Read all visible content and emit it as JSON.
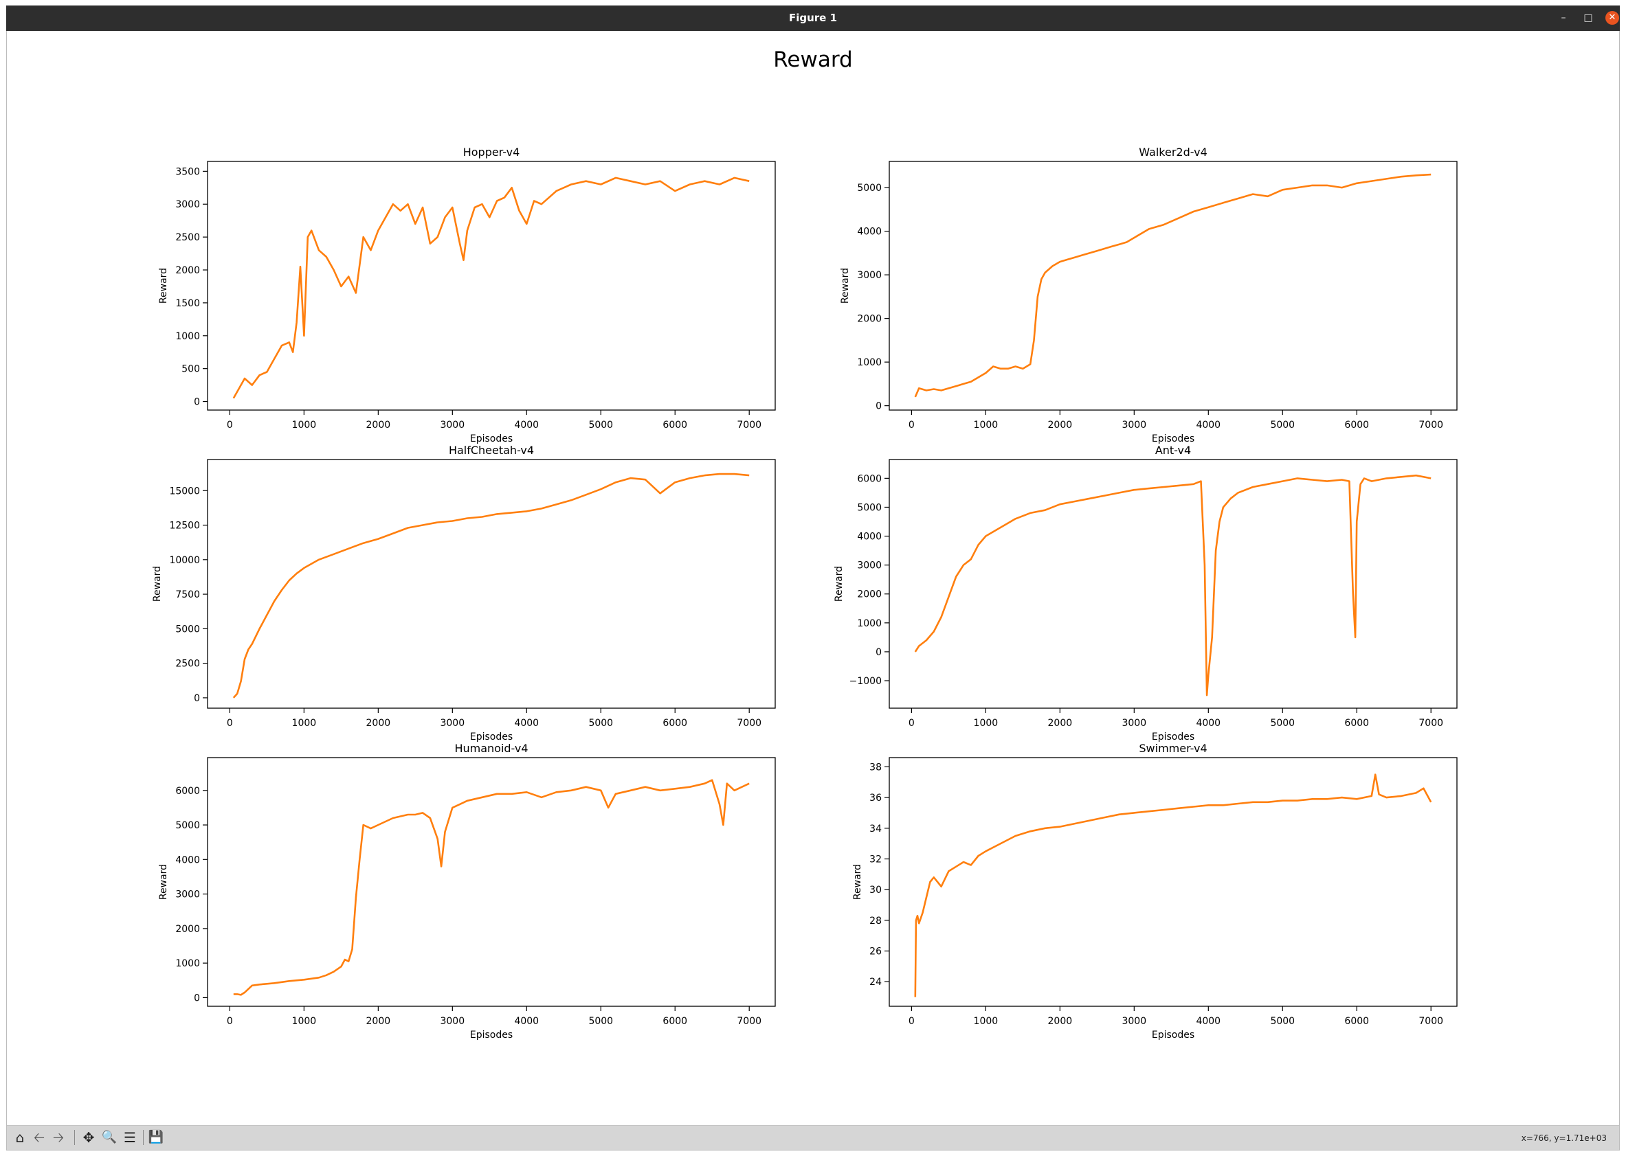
{
  "window": {
    "title": "Figure 1"
  },
  "figure": {
    "suptitle": "Reward"
  },
  "toolbar": {
    "buttons": [
      "home-icon",
      "back-icon",
      "forward-icon",
      "pan-icon",
      "zoom-icon",
      "configure-subplots-icon",
      "save-icon"
    ],
    "status": "x=766, y=1.71e+03"
  },
  "colors": {
    "line": "#ff7f0e",
    "titlebar": "#2e2e2e",
    "toolbar": "#d6d6d6",
    "close": "#e95420"
  },
  "chart_data": [
    {
      "type": "line",
      "title": "Hopper-v4",
      "xlabel": "Episodes",
      "ylabel": "Reward",
      "xlim": [
        -300,
        7350
      ],
      "ylim": [
        -130,
        3650
      ],
      "xticks": [
        0,
        1000,
        2000,
        3000,
        4000,
        5000,
        6000,
        7000
      ],
      "yticks": [
        0,
        500,
        1000,
        1500,
        2000,
        2500,
        3000,
        3500
      ],
      "x": [
        50,
        150,
        200,
        300,
        400,
        500,
        600,
        700,
        800,
        850,
        900,
        950,
        1000,
        1050,
        1100,
        1200,
        1300,
        1400,
        1500,
        1600,
        1700,
        1800,
        1900,
        2000,
        2100,
        2200,
        2300,
        2400,
        2500,
        2600,
        2700,
        2800,
        2900,
        3000,
        3100,
        3150,
        3200,
        3300,
        3400,
        3500,
        3600,
        3700,
        3800,
        3900,
        4000,
        4100,
        4200,
        4300,
        4400,
        4500,
        4600,
        4800,
        5000,
        5200,
        5400,
        5600,
        5800,
        6000,
        6200,
        6400,
        6600,
        6800,
        7000
      ],
      "y": [
        50,
        250,
        350,
        250,
        400,
        450,
        650,
        850,
        900,
        750,
        1200,
        2050,
        1000,
        2500,
        2600,
        2300,
        2200,
        2000,
        1750,
        1900,
        1650,
        2500,
        2300,
        2600,
        2800,
        3000,
        2900,
        3000,
        2700,
        2950,
        2400,
        2500,
        2800,
        2950,
        2400,
        2150,
        2600,
        2950,
        3000,
        2800,
        3050,
        3100,
        3250,
        2900,
        2700,
        3050,
        3000,
        3100,
        3200,
        3250,
        3300,
        3350,
        3300,
        3400,
        3350,
        3300,
        3350,
        3200,
        3300,
        3350,
        3300,
        3400,
        3350
      ]
    },
    {
      "type": "line",
      "title": "Walker2d-v4",
      "xlabel": "Episodes",
      "ylabel": "Reward",
      "xlim": [
        -300,
        7350
      ],
      "ylim": [
        -100,
        5600
      ],
      "xticks": [
        0,
        1000,
        2000,
        3000,
        4000,
        5000,
        6000,
        7000
      ],
      "yticks": [
        0,
        1000,
        2000,
        3000,
        4000,
        5000
      ],
      "x": [
        50,
        100,
        200,
        300,
        400,
        500,
        600,
        700,
        800,
        900,
        1000,
        1100,
        1200,
        1300,
        1400,
        1500,
        1600,
        1650,
        1700,
        1750,
        1800,
        1900,
        2000,
        2100,
        2200,
        2300,
        2400,
        2500,
        2600,
        2700,
        2800,
        2900,
        3000,
        3200,
        3400,
        3600,
        3800,
        4000,
        4200,
        4400,
        4600,
        4800,
        5000,
        5200,
        5400,
        5600,
        5800,
        6000,
        6200,
        6400,
        6600,
        6800,
        7000
      ],
      "y": [
        200,
        400,
        350,
        380,
        350,
        400,
        450,
        500,
        550,
        650,
        750,
        900,
        850,
        850,
        900,
        850,
        950,
        1500,
        2500,
        2900,
        3050,
        3200,
        3300,
        3350,
        3400,
        3450,
        3500,
        3550,
        3600,
        3650,
        3700,
        3750,
        3850,
        4050,
        4150,
        4300,
        4450,
        4550,
        4650,
        4750,
        4850,
        4800,
        4950,
        5000,
        5050,
        5050,
        5000,
        5100,
        5150,
        5200,
        5250,
        5280,
        5300
      ]
    },
    {
      "type": "line",
      "title": "HalfCheetah-v4",
      "xlabel": "Episodes",
      "ylabel": "Reward",
      "xlim": [
        -300,
        7350
      ],
      "ylim": [
        -750,
        17250
      ],
      "xticks": [
        0,
        1000,
        2000,
        3000,
        4000,
        5000,
        6000,
        7000
      ],
      "yticks": [
        0,
        2500,
        5000,
        7500,
        10000,
        12500,
        15000
      ],
      "x": [
        50,
        100,
        150,
        200,
        250,
        300,
        400,
        500,
        600,
        700,
        800,
        900,
        1000,
        1200,
        1400,
        1600,
        1800,
        2000,
        2200,
        2400,
        2600,
        2800,
        3000,
        3200,
        3400,
        3600,
        3800,
        4000,
        4200,
        4400,
        4600,
        4800,
        5000,
        5200,
        5400,
        5600,
        5700,
        5800,
        6000,
        6200,
        6400,
        6600,
        6800,
        7000
      ],
      "y": [
        0,
        300,
        1200,
        2800,
        3500,
        3900,
        5000,
        6000,
        7000,
        7800,
        8500,
        9000,
        9400,
        10000,
        10400,
        10800,
        11200,
        11500,
        11900,
        12300,
        12500,
        12700,
        12800,
        13000,
        13100,
        13300,
        13400,
        13500,
        13700,
        14000,
        14300,
        14700,
        15100,
        15600,
        15900,
        15800,
        15300,
        14800,
        15600,
        15900,
        16100,
        16200,
        16200,
        16100
      ]
    },
    {
      "type": "line",
      "title": "Ant-v4",
      "xlabel": "Episodes",
      "ylabel": "Reward",
      "xlim": [
        -300,
        7350
      ],
      "ylim": [
        -1950,
        6650
      ],
      "xticks": [
        0,
        1000,
        2000,
        3000,
        4000,
        5000,
        6000,
        7000
      ],
      "yticks": [
        -1000,
        0,
        1000,
        2000,
        3000,
        4000,
        5000,
        6000
      ],
      "x": [
        50,
        100,
        200,
        300,
        400,
        500,
        600,
        700,
        800,
        900,
        1000,
        1200,
        1400,
        1600,
        1800,
        2000,
        2200,
        2400,
        2600,
        2800,
        3000,
        3200,
        3400,
        3600,
        3800,
        3900,
        3950,
        3980,
        4000,
        4050,
        4100,
        4150,
        4200,
        4300,
        4400,
        4600,
        4800,
        5000,
        5200,
        5400,
        5600,
        5800,
        5900,
        5950,
        5980,
        6000,
        6050,
        6100,
        6200,
        6400,
        6600,
        6800,
        7000
      ],
      "y": [
        0,
        200,
        400,
        700,
        1200,
        1900,
        2600,
        3000,
        3200,
        3700,
        4000,
        4300,
        4600,
        4800,
        4900,
        5100,
        5200,
        5300,
        5400,
        5500,
        5600,
        5650,
        5700,
        5750,
        5800,
        5900,
        3000,
        -1500,
        -800,
        500,
        3500,
        4500,
        5000,
        5300,
        5500,
        5700,
        5800,
        5900,
        6000,
        5950,
        5900,
        5950,
        5900,
        2000,
        500,
        4500,
        5800,
        6000,
        5900,
        6000,
        6050,
        6100,
        6000
      ]
    },
    {
      "type": "line",
      "title": "Humanoid-v4",
      "xlabel": "Episodes",
      "ylabel": "Reward",
      "xlim": [
        -300,
        7350
      ],
      "ylim": [
        -250,
        6950
      ],
      "xticks": [
        0,
        1000,
        2000,
        3000,
        4000,
        5000,
        6000,
        7000
      ],
      "yticks": [
        0,
        1000,
        2000,
        3000,
        4000,
        5000,
        6000
      ],
      "x": [
        50,
        100,
        150,
        200,
        300,
        400,
        500,
        600,
        700,
        800,
        900,
        1000,
        1100,
        1200,
        1300,
        1400,
        1500,
        1550,
        1600,
        1650,
        1700,
        1750,
        1800,
        1900,
        2000,
        2100,
        2200,
        2300,
        2400,
        2500,
        2600,
        2700,
        2800,
        2850,
        2900,
        3000,
        3100,
        3200,
        3400,
        3600,
        3800,
        4000,
        4200,
        4400,
        4600,
        4800,
        5000,
        5100,
        5200,
        5400,
        5600,
        5800,
        6000,
        6200,
        6400,
        6500,
        6600,
        6650,
        6700,
        6800,
        7000
      ],
      "y": [
        100,
        100,
        80,
        150,
        350,
        380,
        400,
        420,
        450,
        480,
        500,
        520,
        550,
        580,
        650,
        750,
        900,
        1100,
        1050,
        1400,
        2900,
        4000,
        5000,
        4900,
        5000,
        5100,
        5200,
        5250,
        5300,
        5300,
        5350,
        5200,
        4600,
        3800,
        4800,
        5500,
        5600,
        5700,
        5800,
        5900,
        5900,
        5950,
        5800,
        5950,
        6000,
        6100,
        6000,
        5500,
        5900,
        6000,
        6100,
        6000,
        6050,
        6100,
        6200,
        6300,
        5600,
        5000,
        6200,
        6000,
        6200
      ]
    },
    {
      "type": "line",
      "title": "Swimmer-v4",
      "xlabel": "Episodes",
      "ylabel": "Reward",
      "xlim": [
        -300,
        7350
      ],
      "ylim": [
        22.4,
        38.6
      ],
      "xticks": [
        0,
        1000,
        2000,
        3000,
        4000,
        5000,
        6000,
        7000
      ],
      "yticks": [
        24,
        26,
        28,
        30,
        32,
        34,
        36,
        38
      ],
      "x": [
        50,
        60,
        80,
        100,
        150,
        200,
        250,
        300,
        400,
        500,
        600,
        700,
        800,
        900,
        1000,
        1200,
        1400,
        1600,
        1800,
        2000,
        2200,
        2400,
        2600,
        2800,
        3000,
        3200,
        3400,
        3600,
        3800,
        4000,
        4200,
        4400,
        4600,
        4800,
        5000,
        5200,
        5400,
        5600,
        5800,
        6000,
        6200,
        6250,
        6300,
        6400,
        6600,
        6800,
        6900,
        7000
      ],
      "y": [
        23,
        28,
        28.3,
        27.8,
        28.5,
        29.5,
        30.5,
        30.8,
        30.2,
        31.2,
        31.5,
        31.8,
        31.6,
        32.2,
        32.5,
        33,
        33.5,
        33.8,
        34,
        34.1,
        34.3,
        34.5,
        34.7,
        34.9,
        35,
        35.1,
        35.2,
        35.3,
        35.4,
        35.5,
        35.5,
        35.6,
        35.7,
        35.7,
        35.8,
        35.8,
        35.9,
        35.9,
        36,
        35.9,
        36.1,
        37.5,
        36.2,
        36,
        36.1,
        36.3,
        36.6,
        35.7
      ]
    }
  ]
}
